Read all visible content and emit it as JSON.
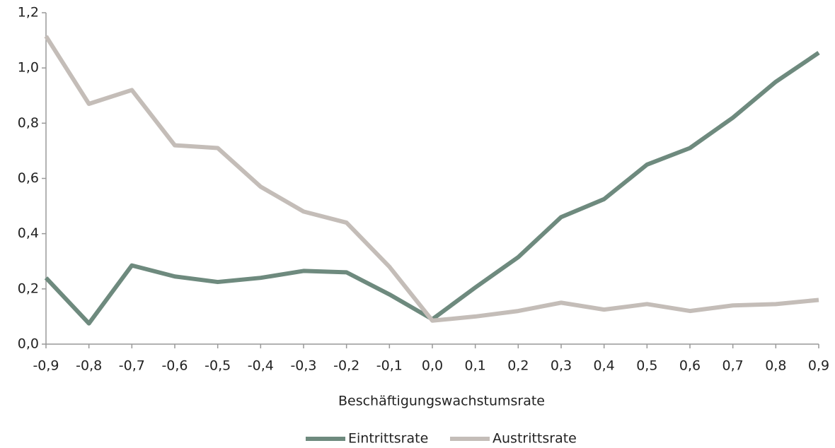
{
  "chart_data": {
    "type": "line",
    "x_label": "Beschäftigungswachstumsrate",
    "x": [
      -0.9,
      -0.8,
      -0.7,
      -0.6,
      -0.5,
      -0.4,
      -0.3,
      -0.2,
      -0.1,
      0.0,
      0.1,
      0.2,
      0.3,
      0.4,
      0.5,
      0.6,
      0.7,
      0.8,
      0.9
    ],
    "series": [
      {
        "name": "Eintrittsrate",
        "color": "#6e8a7e",
        "values": [
          0.24,
          0.075,
          0.285,
          0.245,
          0.225,
          0.24,
          0.265,
          0.26,
          0.18,
          0.09,
          0.205,
          0.315,
          0.46,
          0.525,
          0.65,
          0.71,
          0.82,
          0.95,
          1.055
        ]
      },
      {
        "name": "Austrittsrate",
        "color": "#c4bdb8",
        "values": [
          1.115,
          0.87,
          0.92,
          0.72,
          0.71,
          0.57,
          0.48,
          0.44,
          0.28,
          0.085,
          0.1,
          0.12,
          0.15,
          0.125,
          0.145,
          0.12,
          0.14,
          0.145,
          0.16
        ]
      }
    ],
    "xlim": [
      -0.9,
      0.9
    ],
    "xticks": [
      {
        "value": -0.9,
        "label": "-0,9"
      },
      {
        "value": -0.8,
        "label": "-0,8"
      },
      {
        "value": -0.7,
        "label": "-0,7"
      },
      {
        "value": -0.6,
        "label": "-0,6"
      },
      {
        "value": -0.5,
        "label": "-0,5"
      },
      {
        "value": -0.4,
        "label": "-0,4"
      },
      {
        "value": -0.3,
        "label": "-0,3"
      },
      {
        "value": -0.2,
        "label": "-0,2"
      },
      {
        "value": -0.1,
        "label": "-0,1"
      },
      {
        "value": 0.0,
        "label": "0,0"
      },
      {
        "value": 0.1,
        "label": "0,1"
      },
      {
        "value": 0.2,
        "label": "0,2"
      },
      {
        "value": 0.3,
        "label": "0,3"
      },
      {
        "value": 0.4,
        "label": "0,4"
      },
      {
        "value": 0.5,
        "label": "0,5"
      },
      {
        "value": 0.6,
        "label": "0,6"
      },
      {
        "value": 0.7,
        "label": "0,7"
      },
      {
        "value": 0.8,
        "label": "0,8"
      },
      {
        "value": 0.9,
        "label": "0,9"
      }
    ],
    "ylim": [
      0,
      1.2
    ],
    "yticks": [
      {
        "value": 0,
        "label": "0,0"
      },
      {
        "value": 0.2,
        "label": "0,2"
      },
      {
        "value": 0.4,
        "label": "0,4"
      },
      {
        "value": 0.6,
        "label": "0,6"
      },
      {
        "value": 0.8,
        "label": "0,8"
      },
      {
        "value": 1.0,
        "label": "1,0"
      },
      {
        "value": 1.2,
        "label": "1,2"
      }
    ],
    "grid": false,
    "legend": "bottom"
  }
}
